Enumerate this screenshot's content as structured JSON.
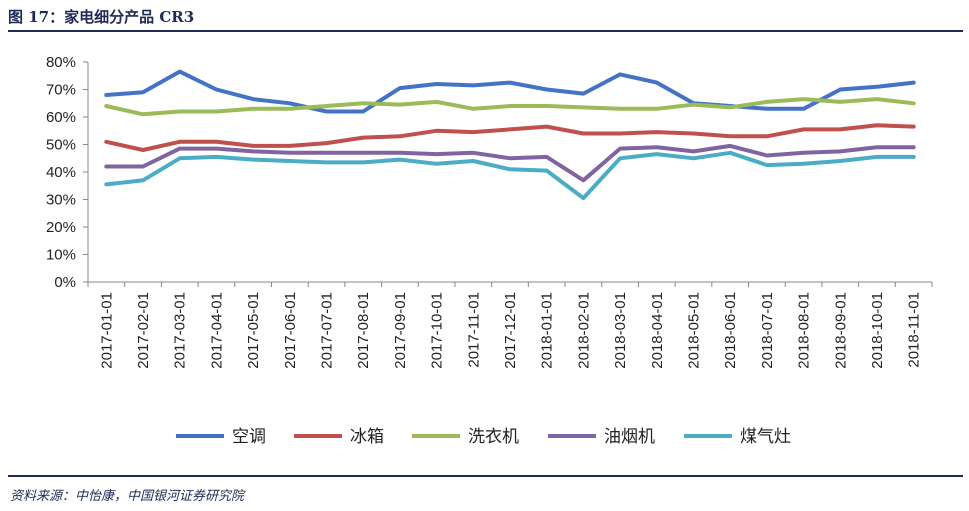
{
  "figure": {
    "title": "图 17：家电细分产品 CR3",
    "source": "资料来源：中怡康，中国银河证券研究院"
  },
  "chart_data": {
    "type": "line",
    "title": "",
    "xlabel": "",
    "ylabel": "",
    "ylim": [
      0,
      80
    ],
    "y_ticks": [
      "0%",
      "10%",
      "20%",
      "30%",
      "40%",
      "50%",
      "60%",
      "70%",
      "80%"
    ],
    "y_tick_values": [
      0,
      10,
      20,
      30,
      40,
      50,
      60,
      70,
      80
    ],
    "grid": false,
    "legend_position": "bottom",
    "categories": [
      "2017-01-01",
      "2017-02-01",
      "2017-03-01",
      "2017-04-01",
      "2017-05-01",
      "2017-06-01",
      "2017-07-01",
      "2017-08-01",
      "2017-09-01",
      "2017-10-01",
      "2017-11-01",
      "2017-12-01",
      "2018-01-01",
      "2018-02-01",
      "2018-03-01",
      "2018-04-01",
      "2018-05-01",
      "2018-06-01",
      "2018-07-01",
      "2018-08-01",
      "2018-09-01",
      "2018-10-01",
      "2018-11-01"
    ],
    "series": [
      {
        "name": "空调",
        "color": "#4472c4",
        "values": [
          68,
          69,
          76.5,
          70,
          66.5,
          65,
          62,
          62,
          70.5,
          72,
          71.5,
          72.5,
          70,
          68.5,
          75.5,
          72.5,
          65,
          64,
          63,
          63,
          70,
          71,
          72.5
        ]
      },
      {
        "name": "冰箱",
        "color": "#c0504d",
        "values": [
          51,
          48,
          51,
          51,
          49.5,
          49.5,
          50.5,
          52.5,
          53,
          55,
          54.5,
          55.5,
          56.5,
          54,
          54,
          54.5,
          54,
          53,
          53,
          55.5,
          55.5,
          57,
          56.5
        ]
      },
      {
        "name": "洗衣机",
        "color": "#9bbb59",
        "values": [
          64,
          61,
          62,
          62,
          63,
          63,
          64,
          65,
          64.5,
          65.5,
          63,
          64,
          64,
          63.5,
          63,
          63,
          64.5,
          63.5,
          65.5,
          66.5,
          65.5,
          66.5,
          65
        ]
      },
      {
        "name": "油烟机",
        "color": "#8064a2",
        "values": [
          42,
          42,
          48.5,
          48.5,
          47.5,
          47,
          47,
          47,
          47,
          46.5,
          47,
          45,
          45.5,
          37,
          48.5,
          49,
          47.5,
          49.5,
          46,
          47,
          47.5,
          49,
          49
        ]
      },
      {
        "name": "煤气灶",
        "color": "#4bacc6",
        "values": [
          35.5,
          37,
          45,
          45.5,
          44.5,
          44,
          43.5,
          43.5,
          44.5,
          43,
          44,
          41,
          40.5,
          30.5,
          45,
          46.5,
          45,
          47,
          42.5,
          43,
          44,
          45.5,
          45.5
        ]
      }
    ]
  }
}
